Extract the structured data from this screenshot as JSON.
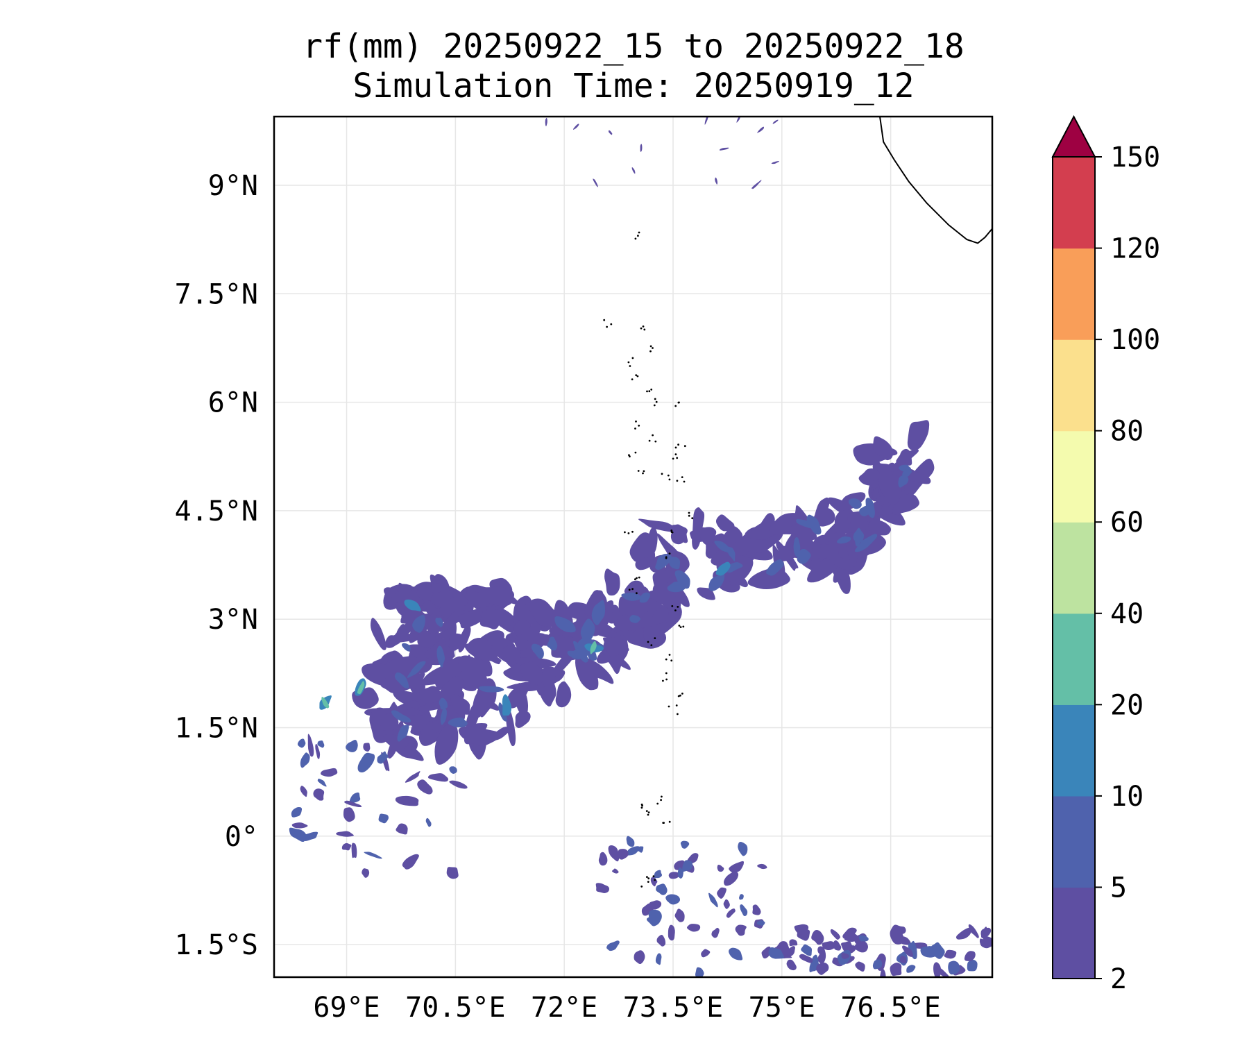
{
  "chart_data": {
    "type": "filled-contour-map",
    "title": "rf(mm) 20250922_15 to 20250922_18",
    "subtitle": "Simulation Time: 20250919_12",
    "variable": "rf(mm)",
    "extent": {
      "lon": [
        68.0,
        77.9
      ],
      "lat": [
        -1.95,
        9.95
      ]
    },
    "grid": true,
    "x_ticks": [
      {
        "value": 69.0,
        "label": "69°E"
      },
      {
        "value": 70.5,
        "label": "70.5°E"
      },
      {
        "value": 72.0,
        "label": "72°E"
      },
      {
        "value": 73.5,
        "label": "73.5°E"
      },
      {
        "value": 75.0,
        "label": "75°E"
      },
      {
        "value": 76.5,
        "label": "76.5°E"
      }
    ],
    "y_ticks": [
      {
        "value": 9.0,
        "label": "9°N"
      },
      {
        "value": 7.5,
        "label": "7.5°N"
      },
      {
        "value": 6.0,
        "label": "6°N"
      },
      {
        "value": 4.5,
        "label": "4.5°N"
      },
      {
        "value": 3.0,
        "label": "3°N"
      },
      {
        "value": 1.5,
        "label": "1.5°N"
      },
      {
        "value": 0.0,
        "label": "0°"
      },
      {
        "value": -1.5,
        "label": "1.5°S"
      }
    ],
    "colorbar": {
      "levels": [
        2,
        5,
        10,
        20,
        40,
        60,
        80,
        100,
        120,
        150
      ],
      "labels": [
        "2",
        "5",
        "10",
        "20",
        "40",
        "60",
        "80",
        "100",
        "120",
        "150"
      ],
      "colors": [
        "#5e4fa2",
        "#4f62ad",
        "#3a85ba",
        "#64bfa7",
        "#bde3a0",
        "#f4fbae",
        "#fbe08d",
        "#f99e59",
        "#d33e4f"
      ],
      "extend_color": "#9e0142",
      "extend": "max"
    },
    "rain_band": [
      {
        "lon": 69.5,
        "lat": 2.3,
        "mm": 10
      },
      {
        "lon": 70.6,
        "lat": 2.3,
        "mm": 10
      },
      {
        "lon": 72.3,
        "lat": 2.6,
        "mm": 10
      },
      {
        "lon": 73.6,
        "lat": 3.8,
        "mm": 5
      },
      {
        "lon": 75.9,
        "lat": 4.1,
        "mm": 5
      },
      {
        "lon": 76.8,
        "lat": 5.3,
        "mm": 5
      }
    ],
    "rain_peaks": [
      {
        "lon": 68.7,
        "lat": 1.85,
        "mm": 20
      },
      {
        "lon": 69.2,
        "lat": 2.05,
        "mm": 20
      },
      {
        "lon": 72.4,
        "lat": 2.6,
        "mm": 20
      },
      {
        "lon": 69.9,
        "lat": 3.2,
        "mm": 10
      },
      {
        "lon": 71.2,
        "lat": 1.8,
        "mm": 10
      },
      {
        "lon": 74.2,
        "lat": 3.7,
        "mm": 10
      }
    ],
    "southern_rain": {
      "lon_range": [
        72.5,
        77.9
      ],
      "lat_range": [
        -1.95,
        -0.2
      ],
      "mm": 5
    },
    "northern_rain": {
      "lon_range": [
        71.5,
        75.5
      ],
      "lat_range": [
        9.0,
        9.95
      ],
      "mm": 5
    },
    "coastline": [
      [
        76.35,
        9.95
      ],
      [
        76.4,
        9.6
      ],
      [
        76.55,
        9.35
      ],
      [
        76.75,
        9.05
      ],
      [
        77.0,
        8.75
      ],
      [
        77.3,
        8.45
      ],
      [
        77.55,
        8.25
      ],
      [
        77.7,
        8.2
      ],
      [
        77.8,
        8.28
      ],
      [
        77.9,
        8.4
      ]
    ],
    "islands": [
      [
        73.02,
        8.3
      ],
      [
        72.6,
        7.1
      ],
      [
        73.1,
        7.05
      ],
      [
        73.2,
        6.75
      ],
      [
        72.9,
        6.55
      ],
      [
        73.0,
        6.35
      ],
      [
        73.2,
        6.15
      ],
      [
        73.3,
        6.0
      ],
      [
        73.6,
        5.95
      ],
      [
        73.0,
        5.7
      ],
      [
        73.2,
        5.5
      ],
      [
        73.6,
        5.4
      ],
      [
        73.5,
        5.25
      ],
      [
        72.95,
        5.25
      ],
      [
        73.05,
        5.05
      ],
      [
        73.4,
        4.95
      ],
      [
        73.6,
        4.9
      ],
      [
        73.7,
        4.45
      ],
      [
        73.5,
        4.2
      ],
      [
        72.9,
        4.15
      ],
      [
        73.45,
        3.9
      ],
      [
        73.0,
        3.6
      ],
      [
        72.95,
        3.4
      ],
      [
        73.55,
        3.15
      ],
      [
        73.6,
        2.95
      ],
      [
        73.2,
        2.7
      ],
      [
        73.45,
        2.45
      ],
      [
        73.35,
        2.2
      ],
      [
        73.6,
        1.95
      ],
      [
        73.5,
        1.75
      ],
      [
        73.3,
        0.5
      ],
      [
        73.2,
        0.3
      ],
      [
        73.4,
        0.25
      ],
      [
        73.05,
        0.45
      ],
      [
        73.2,
        -0.6
      ],
      [
        73.1,
        -0.65
      ]
    ]
  }
}
